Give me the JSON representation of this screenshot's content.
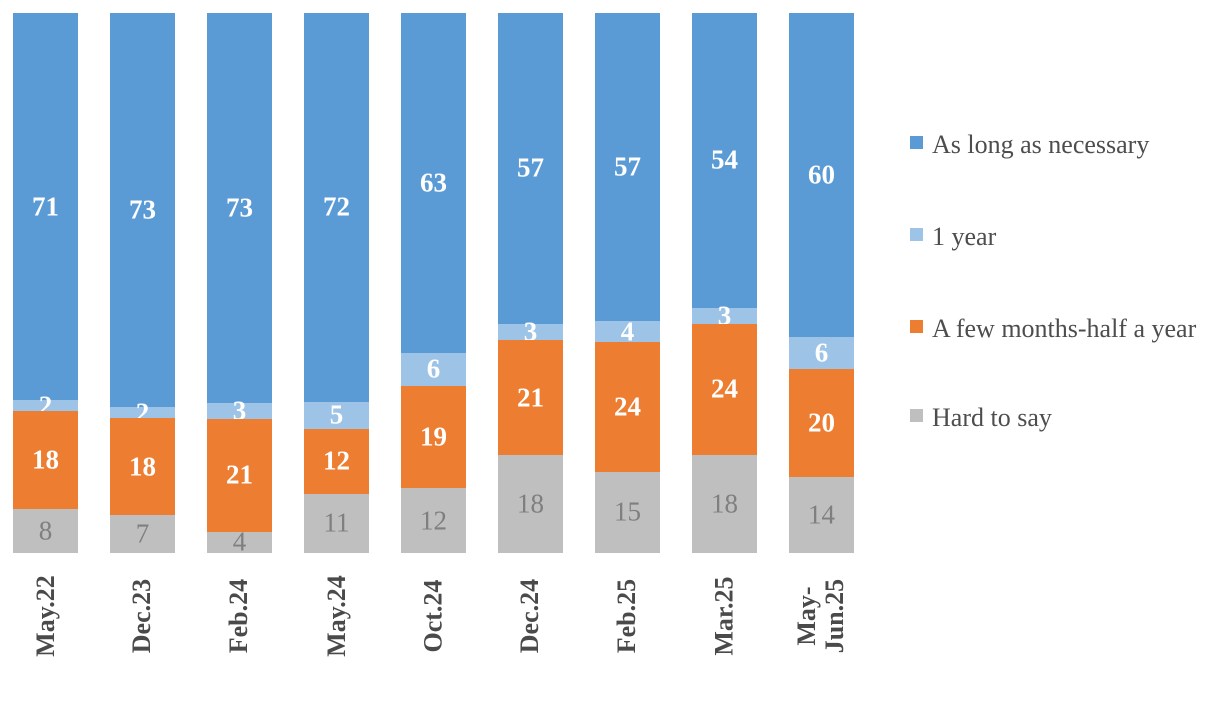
{
  "chart_data": {
    "type": "bar",
    "subtype": "stacked-100-percent",
    "orientation": "vertical",
    "title": "",
    "xlabel": "",
    "ylabel": "",
    "gridlines": false,
    "value_labels": true,
    "categories": [
      "May.22",
      "Dec.23",
      "Feb.24",
      "May.24",
      "Oct.24",
      "Dec.24",
      "Feb.25",
      "Mar.25",
      "May-\nJun.25"
    ],
    "series": [
      {
        "name": "As long as necessary",
        "color": "#5B9BD5",
        "label_color": "#FFFFFF",
        "label_bold": true,
        "values": [
          71,
          73,
          73,
          72,
          63,
          57,
          57,
          54,
          60
        ]
      },
      {
        "name": "1 year",
        "color": "#9DC3E6",
        "label_color": "#FFFFFF",
        "label_bold": true,
        "values": [
          2,
          2,
          3,
          5,
          6,
          3,
          4,
          3,
          6
        ]
      },
      {
        "name": "A few months-half a year",
        "color": "#ED7D31",
        "label_color": "#FFFFFF",
        "label_bold": true,
        "values": [
          18,
          18,
          21,
          12,
          19,
          21,
          24,
          24,
          20
        ]
      },
      {
        "name": "Hard to say",
        "color": "#BFBFBF",
        "label_color": "#7F7F7F",
        "label_bold": false,
        "values": [
          8,
          7,
          4,
          11,
          12,
          18,
          15,
          18,
          14
        ]
      }
    ],
    "legend": {
      "position": "right",
      "entries": [
        "As long as necessary",
        "1 year",
        "A few months-half a year",
        "Hard to say"
      ]
    },
    "colors": {
      "background": "#FFFFFF",
      "axis_label_text": "#4A4A4A",
      "legend_text": "#4D4D4D"
    }
  }
}
